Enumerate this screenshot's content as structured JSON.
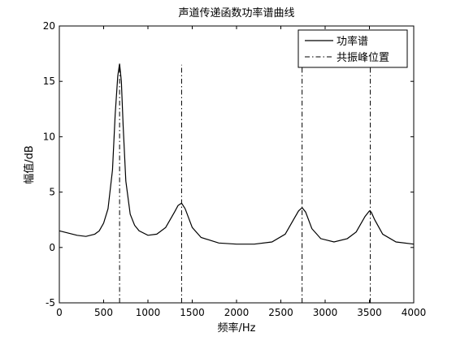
{
  "chart_data": {
    "type": "line",
    "title": "声道传递函数功率谱曲线",
    "xlabel": "频率/Hz",
    "ylabel": "幅值/dB",
    "xlim": [
      0,
      4000
    ],
    "ylim": [
      -5,
      20
    ],
    "xticks": [
      0,
      500,
      1000,
      1500,
      2000,
      2500,
      3000,
      3500,
      4000
    ],
    "yticks": [
      -5,
      0,
      5,
      10,
      15,
      20
    ],
    "grid": false,
    "legend_position": "top-right",
    "legend": [
      {
        "label": "功率谱",
        "style": "solid"
      },
      {
        "label": "共振峰位置",
        "style": "dash-dot"
      }
    ],
    "colors": {
      "line": "#000000",
      "axes": "#000000",
      "background": "#ffffff"
    },
    "series": [
      {
        "style": "solid",
        "x": [
          0,
          100,
          200,
          300,
          400,
          450,
          500,
          550,
          600,
          630,
          660,
          680,
          700,
          720,
          750,
          800,
          850,
          900,
          1000,
          1100,
          1200,
          1300,
          1340,
          1380,
          1420,
          1500,
          1600,
          1800,
          2000,
          2200,
          2400,
          2550,
          2650,
          2700,
          2740,
          2780,
          2850,
          2950,
          3100,
          3250,
          3350,
          3450,
          3500,
          3520,
          3560,
          3650,
          3800,
          4000
        ],
        "y": [
          1.5,
          1.3,
          1.1,
          1.0,
          1.2,
          1.5,
          2.2,
          3.5,
          7.0,
          12.0,
          15.5,
          16.6,
          15.0,
          11.0,
          6.0,
          3.0,
          2.0,
          1.5,
          1.1,
          1.2,
          1.8,
          3.2,
          3.8,
          4.0,
          3.5,
          1.8,
          0.9,
          0.4,
          0.3,
          0.3,
          0.5,
          1.2,
          2.6,
          3.3,
          3.6,
          3.2,
          1.7,
          0.8,
          0.5,
          0.8,
          1.4,
          2.8,
          3.3,
          3.2,
          2.5,
          1.2,
          0.5,
          0.3
        ]
      },
      {
        "style": "dash-dot",
        "x": [
          680,
          1380,
          2740,
          3510
        ]
      }
    ]
  }
}
